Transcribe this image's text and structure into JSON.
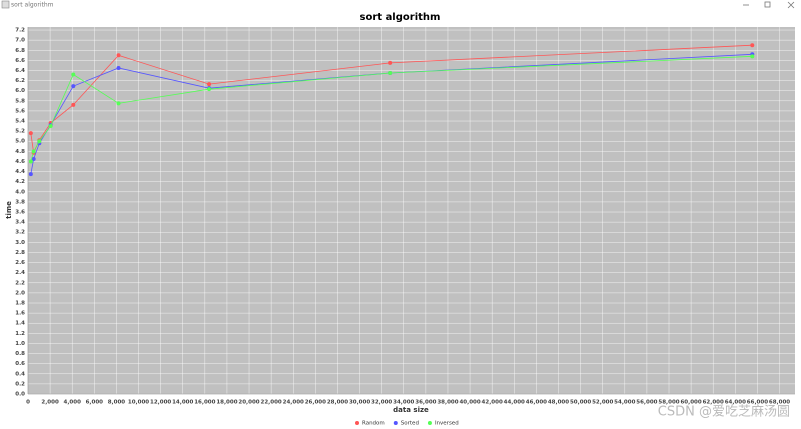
{
  "window": {
    "title": "sort algorithm"
  },
  "chart_data": {
    "type": "line",
    "title": "sort algorithm",
    "x_label": "data size",
    "y_label": "time",
    "x": [
      256,
      512,
      1024,
      2048,
      4096,
      8192,
      16384,
      32768,
      65536
    ],
    "series": [
      {
        "name": "Random",
        "color": "#ff5555",
        "values": [
          5.16,
          4.77,
          5.02,
          5.36,
          5.72,
          6.7,
          6.13,
          6.55,
          6.9
        ]
      },
      {
        "name": "Sorted",
        "color": "#5555ff",
        "values": [
          4.35,
          4.65,
          4.96,
          5.32,
          6.09,
          6.45,
          6.05,
          6.35,
          6.72
        ]
      },
      {
        "name": "Inversed",
        "color": "#55ff55",
        "values": [
          4.6,
          4.8,
          5.0,
          5.3,
          6.32,
          5.75,
          6.03,
          6.35,
          6.68
        ]
      }
    ],
    "xlim": [
      0,
      69400
    ],
    "ylim": [
      0,
      7.26
    ],
    "xticks": [
      0,
      {
        "value": 2000,
        "label": "2,000"
      },
      {
        "value": 4000,
        "label": "4,000"
      },
      {
        "value": 6000,
        "label": "6,000"
      },
      {
        "value": 8000,
        "label": "8,000"
      },
      {
        "value": 10000,
        "label": "10,000"
      },
      {
        "value": 12000,
        "label": "12,000"
      },
      {
        "value": 14000,
        "label": "14,000"
      },
      {
        "value": 16000,
        "label": "16,000"
      },
      {
        "value": 18000,
        "label": "18,000"
      },
      {
        "value": 20000,
        "label": "20,000"
      },
      {
        "value": 22000,
        "label": "22,000"
      },
      {
        "value": 24000,
        "label": "24,000"
      },
      {
        "value": 26000,
        "label": "26,000"
      },
      {
        "value": 28000,
        "label": "28,000"
      },
      {
        "value": 30000,
        "label": "30,000"
      },
      {
        "value": 32000,
        "label": "32,000"
      },
      {
        "value": 34000,
        "label": "34,000"
      },
      {
        "value": 36000,
        "label": "36,000"
      },
      {
        "value": 38000,
        "label": "38,000"
      },
      {
        "value": 40000,
        "label": "40,000"
      },
      {
        "value": 42000,
        "label": "42,000"
      },
      {
        "value": 44000,
        "label": "44,000"
      },
      {
        "value": 46000,
        "label": "46,000"
      },
      {
        "value": 48000,
        "label": "48,000"
      },
      {
        "value": 50000,
        "label": "50,000"
      },
      {
        "value": 52000,
        "label": "52,000"
      },
      {
        "value": 54000,
        "label": "54,000"
      },
      {
        "value": 56000,
        "label": "56,000"
      },
      {
        "value": 58000,
        "label": "58,000"
      },
      {
        "value": 60000,
        "label": "60,000"
      },
      {
        "value": 62000,
        "label": "62,000"
      },
      {
        "value": 64000,
        "label": "64,000"
      },
      {
        "value": 66000,
        "label": "66,000"
      },
      {
        "value": 68000,
        "label": "68,000"
      }
    ],
    "yticks": [
      {
        "value": 0,
        "label": "0.0"
      },
      0.2,
      0.4,
      0.6,
      0.8,
      {
        "value": 1,
        "label": "1.0"
      },
      1.2,
      1.4,
      1.6,
      1.8,
      {
        "value": 2,
        "label": "2.0"
      },
      2.2,
      2.4,
      2.6,
      2.8,
      {
        "value": 3,
        "label": "3.0"
      },
      3.2,
      3.4,
      3.6,
      3.8,
      {
        "value": 4,
        "label": "4.0"
      },
      4.2,
      4.4,
      4.6,
      4.8,
      {
        "value": 5,
        "label": "5.0"
      },
      5.2,
      5.4,
      5.6,
      5.8,
      {
        "value": 6,
        "label": "6.0"
      },
      6.2,
      6.4,
      6.6,
      6.8,
      {
        "value": 7,
        "label": "7.0"
      },
      7.2
    ],
    "grid": true,
    "legend": "bottom",
    "plot_background": "#c0c0c0",
    "grid_color": "#ffffff"
  },
  "watermark": "CSDN @爱吃芝麻汤圆"
}
